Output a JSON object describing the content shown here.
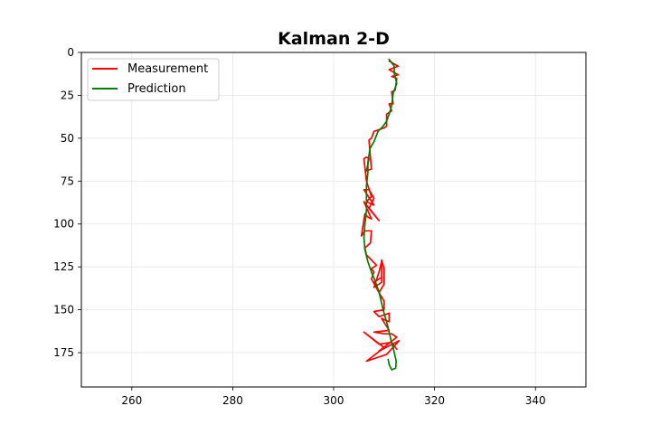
{
  "chart_data": {
    "type": "line",
    "title": "Kalman 2-D",
    "xlabel": "",
    "ylabel": "",
    "xlim": [
      250,
      350
    ],
    "ylim": [
      0,
      195
    ],
    "y_inverted": true,
    "grid": true,
    "x_ticks": [
      260,
      280,
      300,
      320,
      340
    ],
    "y_ticks": [
      0,
      25,
      50,
      75,
      100,
      125,
      150,
      175
    ],
    "legend": {
      "placement": "top-left",
      "entries": [
        "Measurement",
        "Prediction"
      ]
    },
    "series": [
      {
        "name": "Measurement",
        "color": "#ff0000",
        "points": [
          [
            311,
            5
          ],
          [
            312.8,
            8
          ],
          [
            311,
            10
          ],
          [
            312.8,
            13
          ],
          [
            311.5,
            14
          ],
          [
            312.5,
            15
          ],
          [
            312.2,
            22
          ],
          [
            311.5,
            23
          ],
          [
            311.8,
            30
          ],
          [
            311,
            30
          ],
          [
            311.5,
            34
          ],
          [
            310.5,
            36
          ],
          [
            310.5,
            43
          ],
          [
            310.0,
            44
          ],
          [
            308,
            46
          ],
          [
            307.5,
            50
          ],
          [
            307,
            51
          ],
          [
            307.5,
            68
          ],
          [
            306.5,
            69
          ],
          [
            307,
            62
          ],
          [
            306.5,
            61
          ],
          [
            306,
            62
          ],
          [
            306.5,
            75
          ],
          [
            307.5,
            84
          ],
          [
            306.5,
            87
          ],
          [
            308,
            89
          ],
          [
            306,
            80
          ],
          [
            307,
            80
          ],
          [
            308,
            85
          ],
          [
            307,
            91
          ],
          [
            309,
            98
          ],
          [
            306,
            87
          ],
          [
            307.5,
            97
          ],
          [
            306.8,
            96
          ],
          [
            306.2,
            94
          ],
          [
            305.5,
            107
          ],
          [
            306.2,
            104
          ],
          [
            307.5,
            104
          ],
          [
            307.3,
            111
          ],
          [
            306.2,
            114
          ],
          [
            306.5,
            118
          ],
          [
            308.5,
            124
          ],
          [
            307.5,
            126
          ],
          [
            308,
            128
          ],
          [
            307.5,
            132
          ],
          [
            309,
            140
          ],
          [
            308,
            134
          ],
          [
            309.5,
            131
          ],
          [
            309.5,
            122
          ],
          [
            309,
            128
          ],
          [
            308,
            137
          ],
          [
            309.5,
            134
          ],
          [
            309.5,
            121
          ],
          [
            310,
            126
          ],
          [
            310,
            135
          ],
          [
            309,
            140
          ],
          [
            310,
            145
          ],
          [
            310,
            150
          ],
          [
            308,
            151
          ],
          [
            309,
            154
          ],
          [
            311,
            152
          ],
          [
            311,
            157
          ],
          [
            309.5,
            155
          ],
          [
            311,
            162
          ],
          [
            308,
            163
          ],
          [
            310,
            164
          ],
          [
            311.5,
            164
          ],
          [
            312.5,
            166
          ],
          [
            309,
            174
          ],
          [
            313,
            168
          ],
          [
            310.5,
            176
          ],
          [
            306.5,
            180
          ],
          [
            310,
            172
          ],
          [
            306,
            163
          ],
          [
            309,
            170
          ],
          [
            311.5,
            169
          ],
          [
            312.5,
            173
          ]
        ]
      },
      {
        "name": "Prediction",
        "color": "#008000",
        "points": [
          [
            311.0,
            4
          ],
          [
            312.0,
            8
          ],
          [
            312.0,
            12
          ],
          [
            312.5,
            18
          ],
          [
            311.8,
            24
          ],
          [
            311.5,
            31
          ],
          [
            311.0,
            36
          ],
          [
            310.5,
            40
          ],
          [
            309.8,
            43
          ],
          [
            308.8,
            46
          ],
          [
            308.0,
            52
          ],
          [
            307.2,
            56
          ],
          [
            307.0,
            60
          ],
          [
            306.8,
            64
          ],
          [
            306.8,
            70
          ],
          [
            306.5,
            78
          ],
          [
            306.5,
            85
          ],
          [
            306.5,
            92
          ],
          [
            306.2,
            100
          ],
          [
            306.0,
            108
          ],
          [
            306.2,
            115
          ],
          [
            306.8,
            122
          ],
          [
            307.5,
            128
          ],
          [
            308.2,
            133
          ],
          [
            308.8,
            138
          ],
          [
            309.2,
            142
          ],
          [
            309.5,
            146
          ],
          [
            309.8,
            150
          ],
          [
            310.2,
            154
          ],
          [
            310.6,
            158
          ],
          [
            311.0,
            163
          ],
          [
            311.4,
            168
          ],
          [
            311.8,
            172
          ],
          [
            312.1,
            176
          ],
          [
            312.4,
            180
          ],
          [
            312.3,
            184
          ],
          [
            311.5,
            185
          ],
          [
            311.0,
            182
          ],
          [
            310.8,
            179
          ]
        ]
      }
    ]
  }
}
